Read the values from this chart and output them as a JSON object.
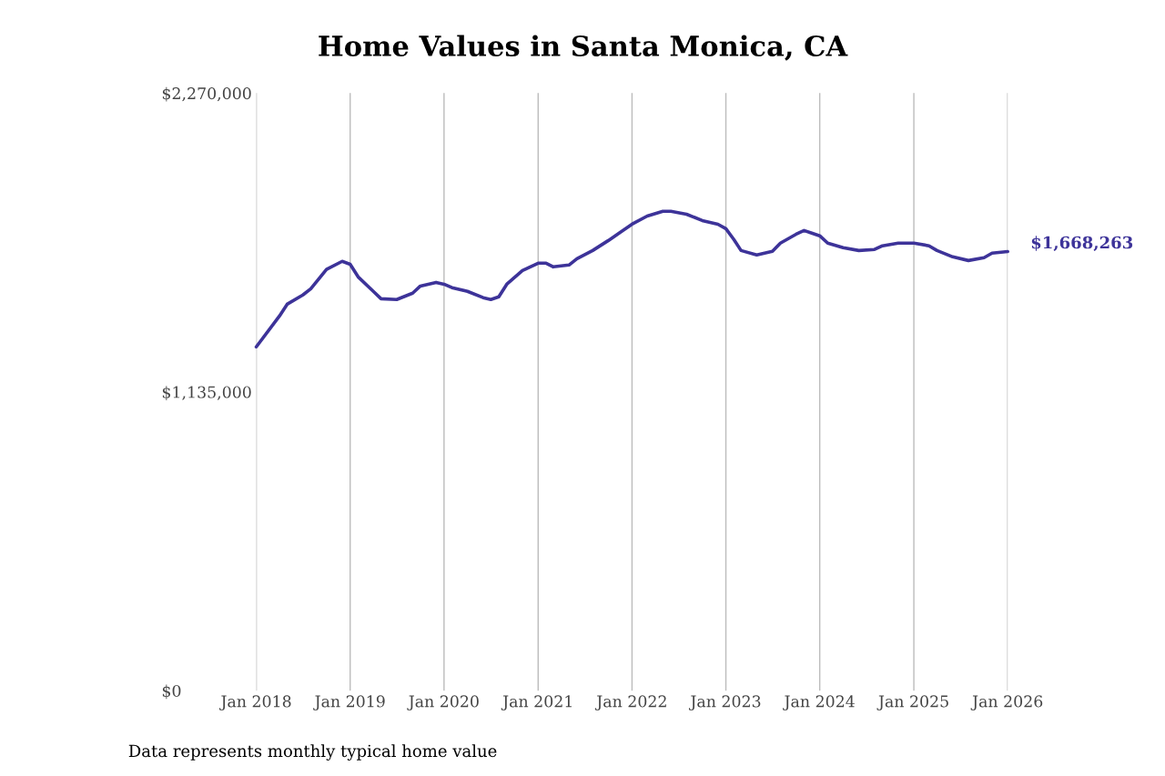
{
  "chart_data": {
    "type": "line",
    "title": "Home Values in Santa Monica, CA",
    "x": [
      "2018-01",
      "2018-04",
      "2018-05",
      "2018-07",
      "2018-08",
      "2018-10",
      "2018-12",
      "2019-01",
      "2019-02",
      "2019-04",
      "2019-05",
      "2019-07",
      "2019-09",
      "2019-10",
      "2019-12",
      "2020-01",
      "2020-02",
      "2020-04",
      "2020-06",
      "2020-07",
      "2020-08",
      "2020-09",
      "2020-11",
      "2021-01",
      "2021-02",
      "2021-03",
      "2021-05",
      "2021-06",
      "2021-08",
      "2021-10",
      "2022-01",
      "2022-03",
      "2022-05",
      "2022-06",
      "2022-08",
      "2022-10",
      "2022-12",
      "2023-01",
      "2023-02",
      "2023-03",
      "2023-05",
      "2023-07",
      "2023-08",
      "2023-10",
      "2023-11",
      "2023-12",
      "2024-01",
      "2024-02",
      "2024-04",
      "2024-06",
      "2024-08",
      "2024-09",
      "2024-11",
      "2025-01",
      "2025-03",
      "2025-04",
      "2025-06",
      "2025-08",
      "2025-10",
      "2025-11",
      "2026-01"
    ],
    "series": [
      {
        "color": "#3d3399",
        "values": [
          1306000,
          1423000,
          1468000,
          1503000,
          1527000,
          1600000,
          1631000,
          1620000,
          1572000,
          1517000,
          1489000,
          1486000,
          1510000,
          1537000,
          1551000,
          1544000,
          1531000,
          1517000,
          1493000,
          1486000,
          1496000,
          1544000,
          1596000,
          1624000,
          1624000,
          1610000,
          1617000,
          1641000,
          1672000,
          1710000,
          1772000,
          1803000,
          1821000,
          1821000,
          1810000,
          1786000,
          1772000,
          1755000,
          1714000,
          1672000,
          1655000,
          1669000,
          1700000,
          1734000,
          1748000,
          1738000,
          1728000,
          1700000,
          1683000,
          1672000,
          1676000,
          1690000,
          1700000,
          1700000,
          1690000,
          1672000,
          1648000,
          1634000,
          1645000,
          1662000,
          1668263
        ],
        "value_labels": [
          null,
          null,
          null,
          null,
          null,
          null,
          null,
          null,
          null,
          null,
          null,
          null,
          null,
          null,
          null,
          null,
          null,
          null,
          null,
          null,
          null,
          null,
          null,
          null,
          null,
          null,
          null,
          null,
          null,
          null,
          null,
          null,
          null,
          null,
          null,
          null,
          null,
          null,
          null,
          null,
          null,
          null,
          null,
          null,
          null,
          null,
          null,
          null,
          null,
          null,
          null,
          null,
          null,
          null,
          null,
          null,
          null,
          null,
          null,
          null,
          "$1,668,263"
        ]
      }
    ],
    "xlim": [
      "2018-01",
      "2026-01"
    ],
    "ylim": [
      0,
      2270000
    ],
    "yticks": [
      {
        "value": 0,
        "label": "$0"
      },
      {
        "value": 1135000,
        "label": "$1,135,000"
      },
      {
        "value": 2270000,
        "label": "$2,270,000"
      }
    ],
    "xticks": [
      {
        "value": "2018-01",
        "label": "Jan 2018"
      },
      {
        "value": "2019-01",
        "label": "Jan 2019"
      },
      {
        "value": "2020-01",
        "label": "Jan 2020"
      },
      {
        "value": "2021-01",
        "label": "Jan 2021"
      },
      {
        "value": "2022-01",
        "label": "Jan 2022"
      },
      {
        "value": "2023-01",
        "label": "Jan 2023"
      },
      {
        "value": "2024-01",
        "label": "Jan 2024"
      },
      {
        "value": "2025-01",
        "label": "Jan 2025"
      },
      {
        "value": "2026-01",
        "label": "Jan 2026"
      }
    ],
    "grid": "x",
    "annotations": [
      "Data represents monthly typical home value"
    ]
  }
}
